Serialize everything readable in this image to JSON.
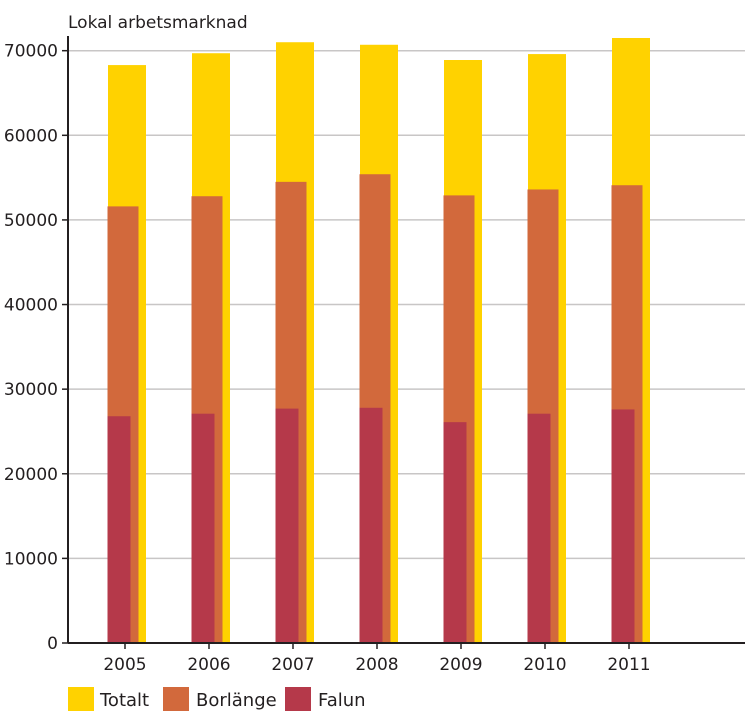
{
  "chart_data": {
    "type": "bar",
    "title": "Lokal arbetsmarknad",
    "xlabel": "",
    "ylabel": "",
    "categories": [
      "2005",
      "2006",
      "2007",
      "2008",
      "2009",
      "2010",
      "2011"
    ],
    "series": [
      {
        "name": "Totalt",
        "values": [
          68300,
          69700,
          71000,
          70700,
          68900,
          69600,
          71500
        ],
        "color": "#ffd200"
      },
      {
        "name": "Borlänge",
        "values": [
          51600,
          52800,
          54500,
          55400,
          52900,
          53600,
          54100
        ],
        "color": "#d2693c"
      },
      {
        "name": "Falun",
        "values": [
          26800,
          27100,
          27700,
          27800,
          26100,
          27100,
          27600
        ],
        "color": "#b5394a"
      }
    ],
    "ylim": [
      0,
      70000
    ],
    "yticks": [
      "0",
      "10000",
      "20000",
      "30000",
      "40000",
      "50000",
      "60000",
      "70000"
    ],
    "grid": true,
    "legend_position": "bottom-left",
    "gridline_color": "#c8c6c6",
    "axis_color": "#231f20"
  }
}
